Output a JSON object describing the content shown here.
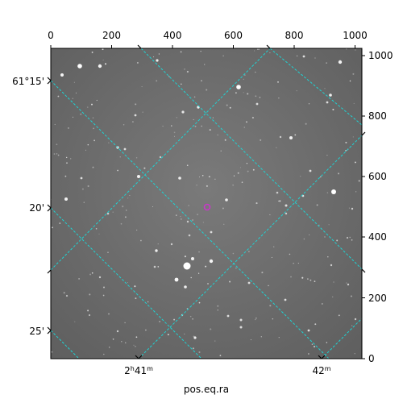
{
  "figure": {
    "xlabel": "pos.eq.ra",
    "top_ticks": [
      "0",
      "200",
      "400",
      "600",
      "800",
      "1000"
    ],
    "right_ticks": [
      "0",
      "200",
      "400",
      "600",
      "800",
      "1000"
    ],
    "ra_ticks": [
      {
        "main": "2",
        "unit": "h",
        "main2": "41",
        "unit2": "m"
      },
      {
        "main": "42",
        "unit": "m",
        "main2": "",
        "unit2": ""
      }
    ],
    "dec_ticks": [
      "61°15'",
      "20'",
      "25'"
    ],
    "colors": {
      "grid": "#1fd3d3",
      "marker": "#c838c8",
      "background": "#6e6e6e"
    }
  }
}
